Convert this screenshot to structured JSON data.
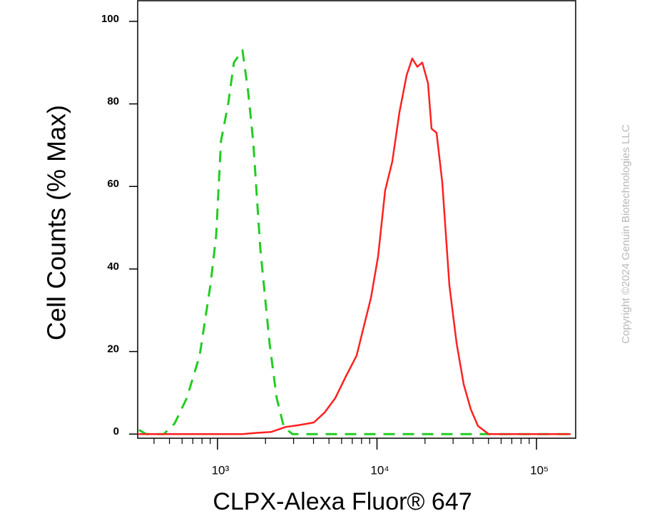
{
  "chart_data": {
    "type": "line",
    "x_label": "CLPX-Alexa Fluor® 647",
    "y_label": "Cell Counts (% Max)",
    "watermark": "Copyright ©2024 Genuin Biotechnologies LLC",
    "xscale": "log",
    "xlim": [
      316,
      176000
    ],
    "ylim": [
      -1,
      105
    ],
    "xticks": [
      {
        "value": 1000,
        "label": "10³"
      },
      {
        "value": 10000,
        "label": "10⁴"
      },
      {
        "value": 100000,
        "label": "10⁵"
      }
    ],
    "xminorticks": [
      400,
      500,
      600,
      700,
      800,
      900,
      2000,
      3000,
      4000,
      5000,
      6000,
      7000,
      8000,
      9000,
      20000,
      30000,
      40000,
      50000,
      60000,
      70000,
      80000,
      90000
    ],
    "yticks": [
      0,
      20,
      40,
      60,
      80,
      100
    ],
    "grid": false,
    "series": [
      {
        "color": "#22cc22",
        "dashed": true,
        "x": [
          322,
          357,
          461,
          539,
          642,
          773,
          902,
          981,
          1052,
          1167,
          1267,
          1434,
          1556,
          1674,
          1855,
          2122,
          2350,
          2607,
          2951,
          164000
        ],
        "values": [
          1,
          0,
          0,
          2.6,
          8.7,
          19,
          36,
          48,
          71,
          80,
          90,
          93,
          83,
          71,
          45,
          22,
          8.7,
          1.7,
          0,
          0
        ]
      },
      {
        "color": "#ff2020",
        "dashed": false,
        "x": [
          316,
          1434,
          1762,
          2167,
          2661,
          3273,
          4018,
          4690,
          5470,
          6383,
          7450,
          8260,
          9160,
          10160,
          11250,
          12470,
          13830,
          15350,
          16640,
          17900,
          19230,
          20890,
          21980,
          23640,
          25650,
          28440,
          31550,
          34990,
          38730,
          42960,
          50120,
          164000
        ],
        "values": [
          0,
          0,
          0.3,
          0.5,
          1.7,
          2.2,
          2.8,
          5.2,
          8.7,
          14,
          19,
          26,
          33,
          43,
          59,
          66,
          78,
          87,
          91,
          89,
          90,
          85,
          74,
          73,
          61,
          36,
          22,
          12,
          6,
          2,
          0,
          0
        ]
      }
    ]
  }
}
